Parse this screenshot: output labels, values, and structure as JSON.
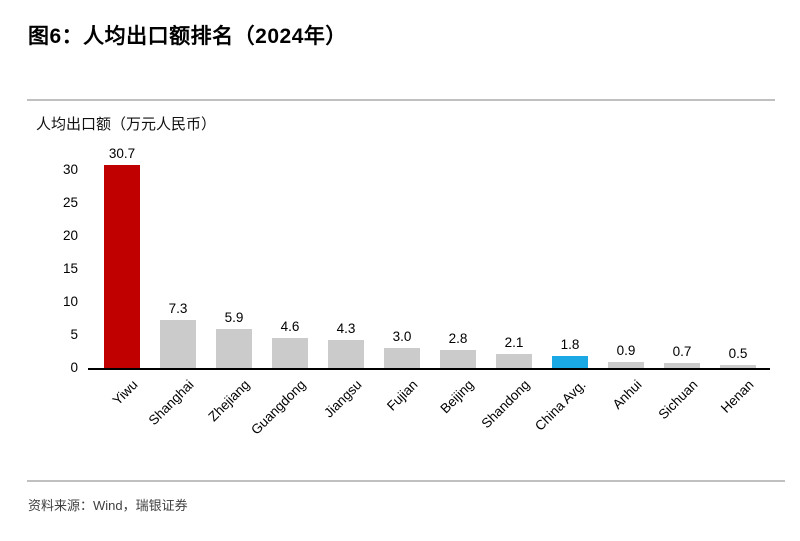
{
  "header": {
    "title": "图6：人均出口额排名（2024年）"
  },
  "chart_data": {
    "type": "bar",
    "axis_title": "人均出口额（万元人民币）",
    "categories": [
      "Yiwu",
      "Shanghai",
      "Zhejiang",
      "Guangdong",
      "Jiangsu",
      "Fujian",
      "Beijing",
      "Shandong",
      "China Avg.",
      "Anhui",
      "Sichuan",
      "Henan"
    ],
    "values": [
      30.7,
      7.3,
      5.9,
      4.6,
      4.3,
      3.0,
      2.8,
      2.1,
      1.8,
      0.9,
      0.7,
      0.5
    ],
    "value_labels": [
      "30.7",
      "7.3",
      "5.9",
      "4.6",
      "4.3",
      "3.0",
      "2.8",
      "2.1",
      "1.8",
      "0.9",
      "0.7",
      "0.5"
    ],
    "y_ticks": [
      0,
      5,
      10,
      15,
      20,
      25,
      30
    ],
    "ylim": [
      0,
      33
    ],
    "grid": false,
    "legend": null,
    "colors": {
      "highlight_bar": "#c00000",
      "highlight_index": 0,
      "accent_bar": "#1aa9e4",
      "accent_index": 8,
      "default_bar": "#cbcbcb",
      "axis_line": "#000000"
    }
  },
  "footer": {
    "source": "资料来源：Wind，瑞银证券"
  }
}
